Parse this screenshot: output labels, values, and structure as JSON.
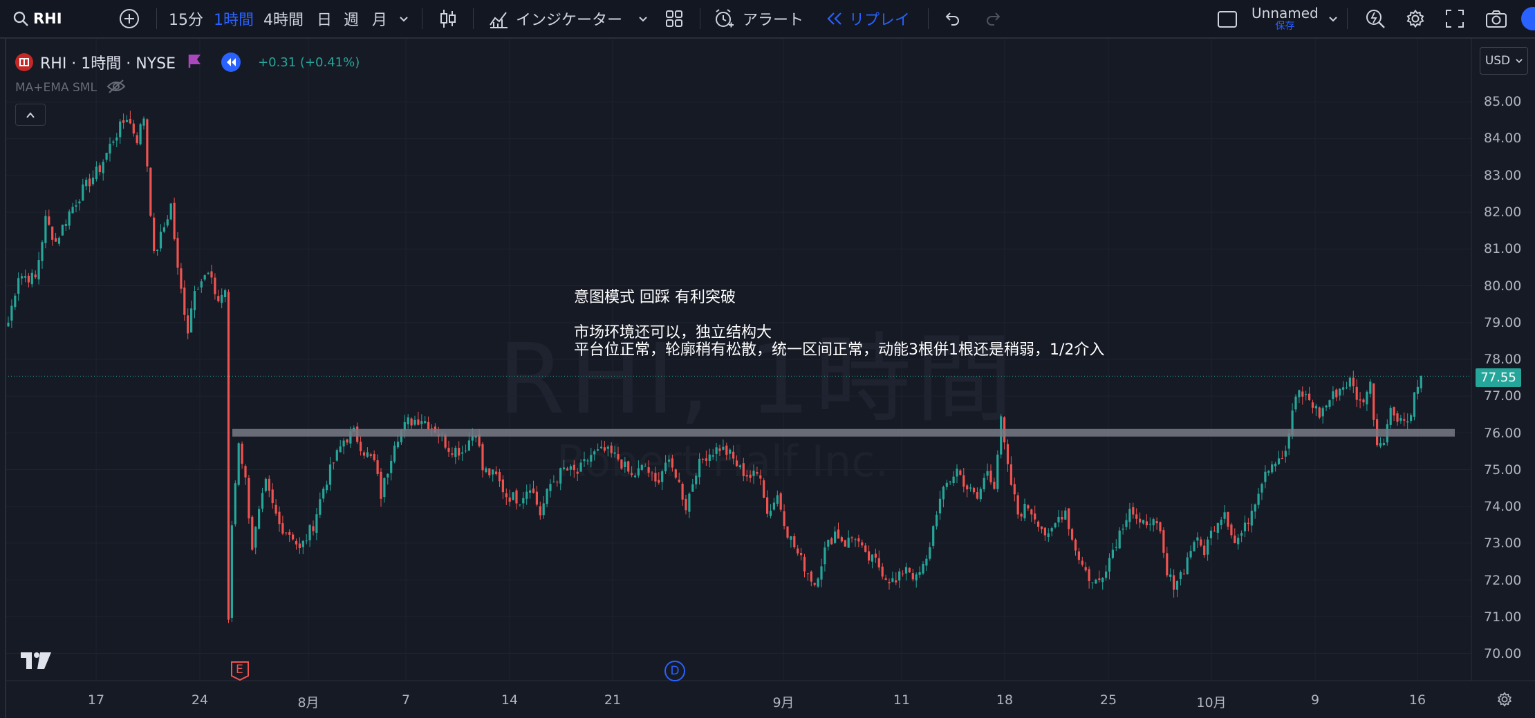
{
  "toolbar": {
    "symbol": "RHI",
    "intervals": [
      "15分",
      "1時間",
      "4時間",
      "日",
      "週",
      "月"
    ],
    "active_interval": "1時間",
    "indicators_label": "インジケーター",
    "alert_label": "アラート",
    "replay_label": "リプレイ",
    "layout_name": "Unnamed",
    "layout_save_label": "保存"
  },
  "legend": {
    "title": "RHI · 1時間 · NYSE",
    "change": "+0.31 (+0.41%)",
    "indicator": "MA+EMA SML"
  },
  "currency": "USD",
  "price_axis": [
    "85.00",
    "84.00",
    "83.00",
    "82.00",
    "81.00",
    "80.00",
    "79.00",
    "78.00",
    "77.00",
    "76.00",
    "75.00",
    "74.00",
    "73.00",
    "72.00",
    "71.00",
    "70.00"
  ],
  "current_price": "77.55",
  "time_axis": [
    "17",
    "24",
    "8月",
    "7",
    "14",
    "21",
    "9月",
    "11",
    "18",
    "25",
    "10月",
    "9",
    "16"
  ],
  "watermark": {
    "title": "RHI, 1時間",
    "subtitle": "Robert Half Inc."
  },
  "annotation": {
    "line1": "意图模式 回踩 有利突破",
    "line2": "市场环境还可以，独立结构大",
    "line3": "平台位正常，轮廓稍有松散，统一区间正常，动能3根併1根还是稍弱，1/2介入"
  },
  "markers": {
    "earnings": "E",
    "dividend": "D"
  },
  "colors": {
    "up": "#26a69a",
    "down": "#ef5350",
    "accent": "#2962ff",
    "background": "#161a25",
    "level_line": "#787b86"
  },
  "chart_data": {
    "type": "candlestick",
    "symbol": "RHI",
    "interval": "1時間",
    "exchange": "NYSE",
    "y_range": [
      69.5,
      85.8
    ],
    "y_ticks": [
      70,
      71,
      72,
      73,
      74,
      75,
      76,
      77,
      78,
      79,
      80,
      81,
      82,
      83,
      84,
      85
    ],
    "x_ticks": [
      "17",
      "24",
      "8月",
      "7",
      "14",
      "21",
      "9月",
      "11",
      "18",
      "25",
      "10月",
      "9",
      "16"
    ],
    "last_price": 77.55,
    "horizontal_levels": [
      76.0
    ],
    "close_path": [
      [
        0,
        79.0
      ],
      [
        3,
        80.3
      ],
      [
        8,
        80.2
      ],
      [
        11,
        81.8
      ],
      [
        14,
        81.2
      ],
      [
        18,
        82.0
      ],
      [
        22,
        82.6
      ],
      [
        27,
        83.2
      ],
      [
        31,
        84.0
      ],
      [
        35,
        84.6
      ],
      [
        38,
        84.0
      ],
      [
        40,
        84.6
      ],
      [
        41,
        83.3
      ],
      [
        43,
        80.8
      ],
      [
        46,
        81.6
      ],
      [
        48,
        82.2
      ],
      [
        50,
        80.4
      ],
      [
        53,
        78.8
      ],
      [
        55,
        80.0
      ],
      [
        59,
        80.3
      ],
      [
        62,
        79.6
      ],
      [
        64,
        79.9
      ],
      [
        65,
        70.8
      ],
      [
        66,
        73.5
      ],
      [
        68,
        75.8
      ],
      [
        70,
        74.7
      ],
      [
        72,
        72.9
      ],
      [
        74,
        73.8
      ],
      [
        76,
        74.6
      ],
      [
        78,
        74.0
      ],
      [
        80,
        73.5
      ],
      [
        84,
        73.2
      ],
      [
        86,
        72.8
      ],
      [
        90,
        73.5
      ],
      [
        93,
        74.5
      ],
      [
        96,
        75.2
      ],
      [
        99,
        75.8
      ],
      [
        102,
        76.0
      ],
      [
        105,
        75.5
      ],
      [
        108,
        75.2
      ],
      [
        110,
        74.3
      ],
      [
        112,
        75.0
      ],
      [
        114,
        75.8
      ],
      [
        118,
        76.3
      ],
      [
        122,
        76.4
      ],
      [
        126,
        76.1
      ],
      [
        130,
        75.6
      ],
      [
        134,
        75.5
      ],
      [
        138,
        76.1
      ],
      [
        140,
        75.0
      ],
      [
        144,
        74.8
      ],
      [
        147,
        74.3
      ],
      [
        151,
        74.2
      ],
      [
        154,
        74.6
      ],
      [
        157,
        73.8
      ],
      [
        160,
        74.6
      ],
      [
        164,
        75.0
      ],
      [
        168,
        74.9
      ],
      [
        172,
        75.4
      ],
      [
        176,
        75.5
      ],
      [
        180,
        75.3
      ],
      [
        184,
        74.8
      ],
      [
        188,
        75.1
      ],
      [
        191,
        74.6
      ],
      [
        194,
        75.2
      ],
      [
        197,
        74.9
      ],
      [
        200,
        74.0
      ],
      [
        203,
        75.0
      ],
      [
        206,
        75.4
      ],
      [
        210,
        75.6
      ],
      [
        213,
        75.4
      ],
      [
        216,
        75.0
      ],
      [
        219,
        74.8
      ],
      [
        222,
        74.9
      ],
      [
        224,
        73.8
      ],
      [
        227,
        74.3
      ],
      [
        230,
        73.3
      ],
      [
        233,
        72.7
      ],
      [
        236,
        72.2
      ],
      [
        238,
        71.9
      ],
      [
        241,
        72.8
      ],
      [
        244,
        73.3
      ],
      [
        247,
        73.0
      ],
      [
        250,
        73.2
      ],
      [
        253,
        72.6
      ],
      [
        256,
        72.5
      ],
      [
        259,
        72.1
      ],
      [
        262,
        71.9
      ],
      [
        265,
        72.4
      ],
      [
        268,
        72.0
      ],
      [
        271,
        72.5
      ],
      [
        274,
        73.9
      ],
      [
        277,
        74.6
      ],
      [
        280,
        75.0
      ],
      [
        283,
        74.5
      ],
      [
        286,
        74.2
      ],
      [
        289,
        75.0
      ],
      [
        291,
        74.6
      ],
      [
        293,
        76.3
      ],
      [
        295,
        75.0
      ],
      [
        298,
        73.8
      ],
      [
        301,
        74.0
      ],
      [
        304,
        73.6
      ],
      [
        307,
        73.1
      ],
      [
        310,
        73.7
      ],
      [
        312,
        73.9
      ],
      [
        314,
        73.1
      ],
      [
        317,
        72.4
      ],
      [
        320,
        71.9
      ],
      [
        322,
        72.0
      ],
      [
        325,
        72.6
      ],
      [
        328,
        73.3
      ],
      [
        331,
        74.0
      ],
      [
        334,
        73.4
      ],
      [
        337,
        73.7
      ],
      [
        340,
        73.2
      ],
      [
        342,
        72.1
      ],
      [
        344,
        71.9
      ],
      [
        347,
        72.3
      ],
      [
        350,
        73.1
      ],
      [
        353,
        72.8
      ],
      [
        356,
        73.5
      ],
      [
        359,
        73.9
      ],
      [
        362,
        73.0
      ],
      [
        365,
        73.4
      ],
      [
        368,
        74.2
      ],
      [
        371,
        75.0
      ],
      [
        374,
        75.3
      ],
      [
        377,
        75.4
      ],
      [
        379,
        76.6
      ],
      [
        381,
        77.1
      ],
      [
        384,
        76.9
      ],
      [
        387,
        76.5
      ],
      [
        390,
        76.9
      ],
      [
        393,
        77.2
      ],
      [
        396,
        77.4
      ],
      [
        399,
        76.8
      ],
      [
        402,
        77.3
      ],
      [
        404,
        75.7
      ],
      [
        406,
        75.9
      ],
      [
        408,
        76.6
      ],
      [
        411,
        76.4
      ],
      [
        413,
        76.3
      ],
      [
        415,
        77.0
      ],
      [
        417,
        77.55
      ]
    ]
  }
}
